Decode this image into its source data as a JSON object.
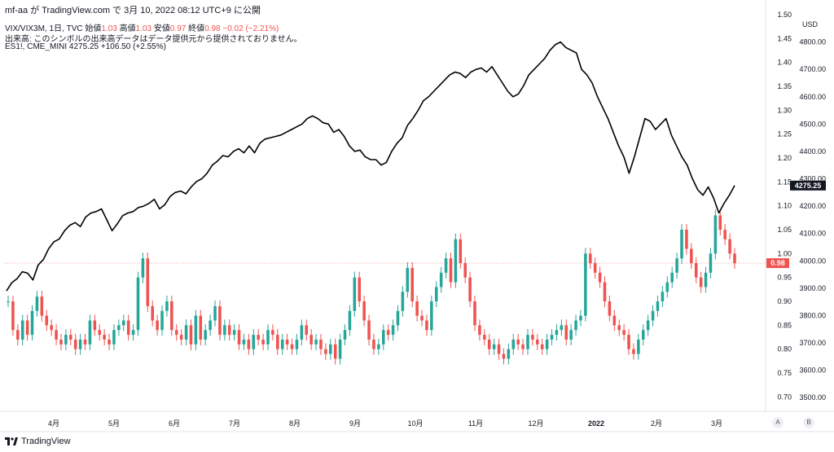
{
  "header": {
    "author": "mf-aa",
    "line": "mf-aa が TradingView.com で 3月 10, 2022 08:12 UTC+9 に公開"
  },
  "legend": {
    "vix_title": "VIX/VIX3M, 1日, TVC",
    "o_label": "始値",
    "o_val": "1.03",
    "h_label": "高値",
    "h_val": "1.03",
    "l_label": "安値",
    "l_val": "0.97",
    "c_label": "終値",
    "c_val": "0.98",
    "change": "−0.02 (−2.21%)",
    "volume_note": "出来高: このシンボルの出来高データはデータ提供元から提供されておりません。",
    "es_title": "ES1!, CME_MINI",
    "es_val": "4275.25",
    "es_change": "+106.50 (+2.55%)"
  },
  "footer": {
    "brand": "TradingView"
  },
  "buttons": {
    "a": "A",
    "b": "B"
  },
  "axis": {
    "currency": "USD"
  },
  "chart_data": {
    "type": "line",
    "x_labels": [
      "4月",
      "5月",
      "6月",
      "7月",
      "8月",
      "9月",
      "10月",
      "11月",
      "12月",
      "2022",
      "2月",
      "3月"
    ],
    "left_axis": {
      "label": "",
      "ticks": [
        "1.50",
        "1.45",
        "1.40",
        "1.35",
        "1.30",
        "1.25",
        "1.20",
        "1.15",
        "1.10",
        "1.05",
        "1.00",
        "0.95",
        "0.90",
        "0.85",
        "0.80",
        "0.75",
        "0.70"
      ],
      "ylim": [
        0.67,
        1.5
      ]
    },
    "right_axis": {
      "label": "USD",
      "ticks": [
        "4800.00",
        "4700.00",
        "4600.00",
        "4500.00",
        "4400.00",
        "4300.00",
        "4200.00",
        "4100.00",
        "4000.00",
        "3900.00",
        "3800.00",
        "3700.00",
        "3600.00",
        "3500.00"
      ],
      "ylim": [
        3450,
        4900
      ]
    },
    "series": [
      {
        "name": "ES1!, CME_MINI",
        "type": "line",
        "color": "#000000",
        "values": [
          3890,
          3920,
          3935,
          3960,
          3955,
          3930,
          3985,
          4005,
          4045,
          4070,
          4080,
          4110,
          4130,
          4140,
          4125,
          4160,
          4175,
          4180,
          4190,
          4150,
          4110,
          4135,
          4165,
          4175,
          4180,
          4195,
          4200,
          4210,
          4225,
          4190,
          4205,
          4235,
          4250,
          4255,
          4245,
          4270,
          4290,
          4300,
          4320,
          4350,
          4365,
          4385,
          4380,
          4400,
          4410,
          4395,
          4420,
          4395,
          4430,
          4445,
          4450,
          4455,
          4460,
          4470,
          4480,
          4490,
          4500,
          4520,
          4530,
          4520,
          4505,
          4500,
          4470,
          4480,
          4455,
          4420,
          4400,
          4405,
          4380,
          4370,
          4370,
          4350,
          4360,
          4400,
          4430,
          4450,
          4495,
          4520,
          4550,
          4585,
          4600,
          4620,
          4640,
          4660,
          4680,
          4690,
          4685,
          4670,
          4690,
          4700,
          4705,
          4690,
          4710,
          4680,
          4650,
          4620,
          4600,
          4610,
          4640,
          4680,
          4700,
          4720,
          4740,
          4770,
          4790,
          4800,
          4780,
          4770,
          4760,
          4700,
          4680,
          4650,
          4600,
          4560,
          4520,
          4470,
          4420,
          4380,
          4320,
          4380,
          4450,
          4520,
          4510,
          4480,
          4500,
          4520,
          4460,
          4420,
          4380,
          4350,
          4300,
          4260,
          4240,
          4270,
          4230,
          4175,
          4210,
          4240,
          4275.25
        ],
        "last_value": "4275.25"
      },
      {
        "name": "VIX/VIX3M",
        "type": "candlestick",
        "up_color": "#26a69a",
        "down_color": "#ef5350",
        "values": [
          0.9,
          0.84,
          0.82,
          0.86,
          0.83,
          0.88,
          0.91,
          0.87,
          0.85,
          0.84,
          0.82,
          0.81,
          0.83,
          0.82,
          0.8,
          0.82,
          0.81,
          0.86,
          0.84,
          0.83,
          0.82,
          0.81,
          0.84,
          0.85,
          0.86,
          0.83,
          0.84,
          0.95,
          0.99,
          0.89,
          0.86,
          0.84,
          0.88,
          0.9,
          0.84,
          0.83,
          0.82,
          0.85,
          0.81,
          0.87,
          0.82,
          0.84,
          0.86,
          0.89,
          0.83,
          0.85,
          0.83,
          0.84,
          0.81,
          0.82,
          0.8,
          0.83,
          0.82,
          0.81,
          0.84,
          0.83,
          0.8,
          0.82,
          0.81,
          0.8,
          0.82,
          0.85,
          0.83,
          0.81,
          0.82,
          0.8,
          0.79,
          0.81,
          0.78,
          0.82,
          0.84,
          0.88,
          0.95,
          0.9,
          0.86,
          0.82,
          0.8,
          0.81,
          0.84,
          0.83,
          0.85,
          0.88,
          0.92,
          0.97,
          0.9,
          0.87,
          0.86,
          0.84,
          0.9,
          0.93,
          0.96,
          0.99,
          0.94,
          1.03,
          0.98,
          0.95,
          0.9,
          0.85,
          0.83,
          0.82,
          0.8,
          0.81,
          0.79,
          0.78,
          0.8,
          0.82,
          0.81,
          0.8,
          0.83,
          0.82,
          0.81,
          0.8,
          0.82,
          0.83,
          0.84,
          0.85,
          0.82,
          0.84,
          0.86,
          0.87,
          1.0,
          0.98,
          0.96,
          0.94,
          0.9,
          0.87,
          0.85,
          0.84,
          0.83,
          0.8,
          0.79,
          0.82,
          0.84,
          0.86,
          0.88,
          0.9,
          0.92,
          0.94,
          0.96,
          0.99,
          1.05,
          1.01,
          0.98,
          0.95,
          0.93,
          0.96,
          1.0,
          1.08,
          1.05,
          1.03,
          1.0,
          0.98
        ],
        "last_value": "0.98"
      }
    ]
  }
}
